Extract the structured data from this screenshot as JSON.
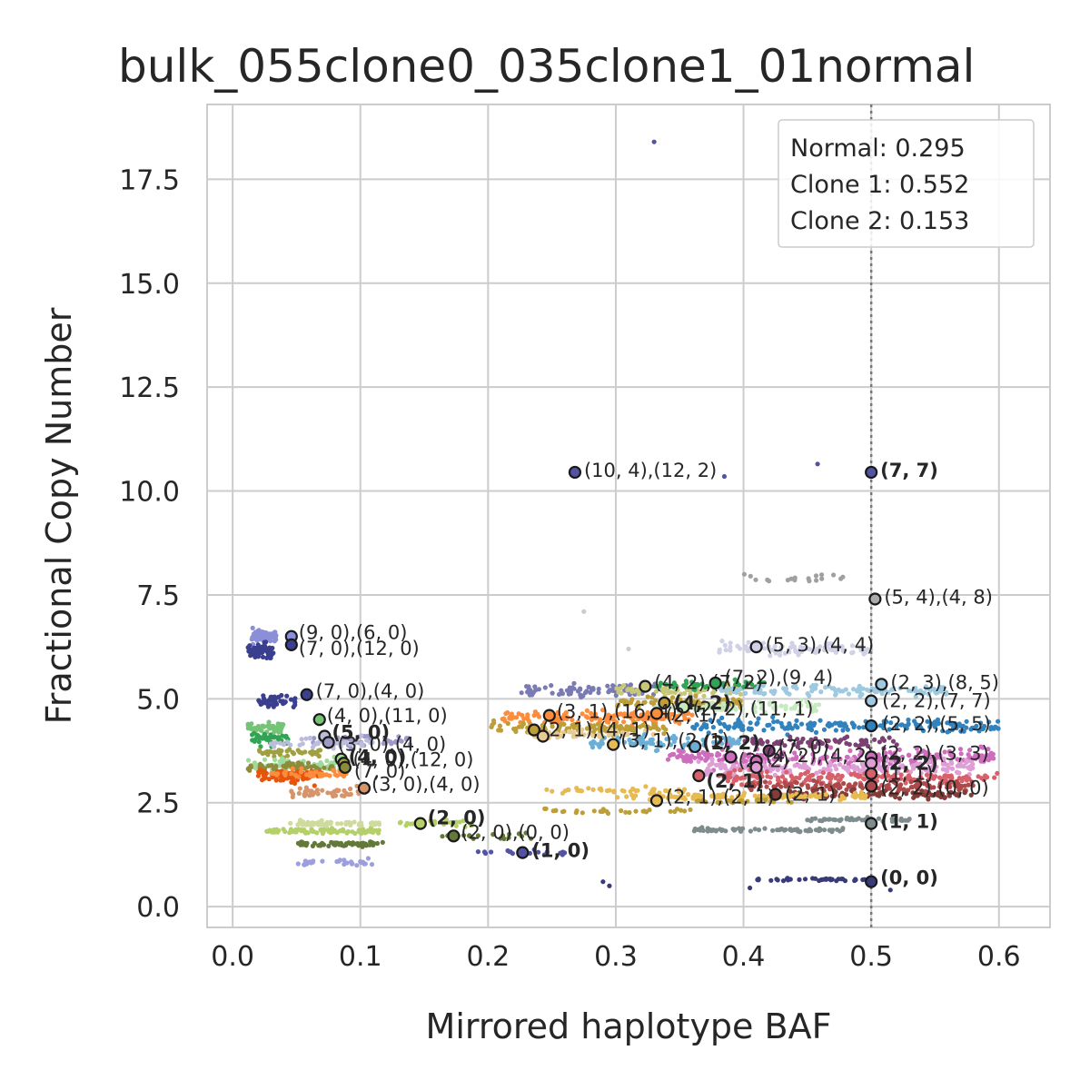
{
  "chart_data": {
    "type": "scatter",
    "title": "bulk_055clone0_035clone1_01normal",
    "xlabel": "Mirrored haplotype BAF",
    "ylabel": "Fractional Copy Number",
    "xlim": [
      -0.02,
      0.64
    ],
    "ylim": [
      -0.5,
      19.3
    ],
    "x_ticks": [
      0.0,
      0.1,
      0.2,
      0.3,
      0.4,
      0.5,
      0.6
    ],
    "x_tick_labels": [
      "0.0",
      "0.1",
      "0.2",
      "0.3",
      "0.4",
      "0.5",
      "0.6"
    ],
    "y_ticks": [
      0.0,
      2.5,
      5.0,
      7.5,
      10.0,
      12.5,
      15.0,
      17.5
    ],
    "y_tick_labels": [
      "0.0",
      "2.5",
      "5.0",
      "7.5",
      "10.0",
      "12.5",
      "15.0",
      "17.5"
    ],
    "grid": true,
    "vline": {
      "x": 0.5,
      "style": "dotted",
      "color": "#777777"
    },
    "legend": {
      "placement": "top-right",
      "lines": [
        "Normal: 0.295",
        "Clone 1: 0.552",
        "Clone 2: 0.153"
      ]
    },
    "clusters": [
      {
        "x": [
          0.015,
          0.035
        ],
        "y": 6.5,
        "sd": 0.12,
        "n": 60,
        "color": "#8a8fd8"
      },
      {
        "x": [
          0.012,
          0.032
        ],
        "y": 6.15,
        "sd": 0.15,
        "n": 70,
        "color": "#3a3f8f"
      },
      {
        "x": [
          0.02,
          0.05
        ],
        "y": 4.95,
        "sd": 0.12,
        "n": 40,
        "color": "#3a3f8f"
      },
      {
        "x": [
          0.012,
          0.04
        ],
        "y": 4.3,
        "sd": 0.12,
        "n": 50,
        "color": "#74c476"
      },
      {
        "x": [
          0.015,
          0.045
        ],
        "y": 4.05,
        "sd": 0.12,
        "n": 40,
        "color": "#31a354"
      },
      {
        "x": [
          0.06,
          0.14
        ],
        "y": 4.0,
        "sd": 0.12,
        "n": 50,
        "color": "#9e9ac8"
      },
      {
        "x": [
          0.03,
          0.11
        ],
        "y": 3.95,
        "sd": 0.1,
        "n": 40,
        "color": "#bcbddc"
      },
      {
        "x": [
          0.02,
          0.07
        ],
        "y": 3.7,
        "sd": 0.08,
        "n": 40,
        "color": "#a0a040"
      },
      {
        "x": [
          0.012,
          0.09
        ],
        "y": 3.4,
        "sd": 0.12,
        "n": 80,
        "color": "#a1d99b"
      },
      {
        "x": [
          0.012,
          0.08
        ],
        "y": 3.35,
        "sd": 0.08,
        "n": 50,
        "color": "#8c8c3a"
      },
      {
        "x": [
          0.02,
          0.07
        ],
        "y": 3.15,
        "sd": 0.12,
        "n": 90,
        "color": "#e6550d"
      },
      {
        "x": [
          0.03,
          0.09
        ],
        "y": 3.2,
        "sd": 0.08,
        "n": 40,
        "color": "#fd8d3c"
      },
      {
        "x": [
          0.045,
          0.1
        ],
        "y": 2.75,
        "sd": 0.1,
        "n": 40,
        "color": "#d6946b"
      },
      {
        "x": [
          0.025,
          0.115
        ],
        "y": 1.82,
        "sd": 0.05,
        "n": 90,
        "color": "#b5cf6b"
      },
      {
        "x": [
          0.045,
          0.115
        ],
        "y": 2.0,
        "sd": 0.05,
        "n": 60,
        "color": "#cedb9c"
      },
      {
        "x": [
          0.05,
          0.12
        ],
        "y": 1.5,
        "sd": 0.05,
        "n": 60,
        "color": "#637939"
      },
      {
        "x": [
          0.05,
          0.11
        ],
        "y": 1.05,
        "sd": 0.06,
        "n": 30,
        "color": "#9c9ede"
      },
      {
        "x": [
          0.13,
          0.19
        ],
        "y": 2.0,
        "sd": 0.06,
        "n": 30,
        "color": "#b5cf6b"
      },
      {
        "x": [
          0.16,
          0.24
        ],
        "y": 1.7,
        "sd": 0.06,
        "n": 20,
        "color": "#637939"
      },
      {
        "x": [
          0.19,
          0.26
        ],
        "y": 1.3,
        "sd": 0.05,
        "n": 20,
        "color": "#5254a3"
      },
      {
        "x": [
          0.21,
          0.36
        ],
        "y": 4.55,
        "sd": 0.12,
        "n": 140,
        "color": "#fd8d3c"
      },
      {
        "x": [
          0.2,
          0.34
        ],
        "y": 4.3,
        "sd": 0.1,
        "n": 110,
        "color": "#bd9e39"
      },
      {
        "x": [
          0.23,
          0.33
        ],
        "y": 4.15,
        "sd": 0.08,
        "n": 60,
        "color": "#e7cb94"
      },
      {
        "x": [
          0.22,
          0.34
        ],
        "y": 5.2,
        "sd": 0.1,
        "n": 80,
        "color": "#7b7bb3"
      },
      {
        "x": [
          0.3,
          0.4
        ],
        "y": 5.2,
        "sd": 0.1,
        "n": 70,
        "color": "#c7c77a"
      },
      {
        "x": [
          0.3,
          0.4
        ],
        "y": 4.9,
        "sd": 0.12,
        "n": 80,
        "color": "#bd9e39"
      },
      {
        "x": [
          0.33,
          0.42
        ],
        "y": 5.35,
        "sd": 0.1,
        "n": 50,
        "color": "#31a354"
      },
      {
        "x": [
          0.33,
          0.46
        ],
        "y": 4.8,
        "sd": 0.1,
        "n": 80,
        "color": "#c7e9c0"
      },
      {
        "x": [
          0.38,
          0.5
        ],
        "y": 6.2,
        "sd": 0.12,
        "n": 90,
        "color": "#d0d0e6"
      },
      {
        "x": [
          0.4,
          0.48
        ],
        "y": 7.9,
        "sd": 0.1,
        "n": 18,
        "color": "#a0a0a0"
      },
      {
        "x": [
          0.38,
          0.56
        ],
        "y": 5.2,
        "sd": 0.12,
        "n": 110,
        "color": "#9ecae1"
      },
      {
        "x": [
          0.28,
          0.4
        ],
        "y": 3.95,
        "sd": 0.12,
        "n": 90,
        "color": "#6baed6"
      },
      {
        "x": [
          0.36,
          0.6
        ],
        "y": 4.35,
        "sd": 0.12,
        "n": 180,
        "color": "#3182bd"
      },
      {
        "x": [
          0.4,
          0.52
        ],
        "y": 3.95,
        "sd": 0.1,
        "n": 70,
        "color": "#7b4173"
      },
      {
        "x": [
          0.34,
          0.6
        ],
        "y": 3.6,
        "sd": 0.15,
        "n": 220,
        "color": "#ce6dbd"
      },
      {
        "x": [
          0.36,
          0.58
        ],
        "y": 3.35,
        "sd": 0.15,
        "n": 200,
        "color": "#de9ed6"
      },
      {
        "x": [
          0.38,
          0.6
        ],
        "y": 3.1,
        "sd": 0.12,
        "n": 160,
        "color": "#d6616b"
      },
      {
        "x": [
          0.4,
          0.58
        ],
        "y": 2.9,
        "sd": 0.1,
        "n": 120,
        "color": "#ad494a"
      },
      {
        "x": [
          0.42,
          0.58
        ],
        "y": 2.7,
        "sd": 0.08,
        "n": 100,
        "color": "#843c39"
      },
      {
        "x": [
          0.3,
          0.5
        ],
        "y": 2.65,
        "sd": 0.06,
        "n": 120,
        "color": "#e7ba52"
      },
      {
        "x": [
          0.24,
          0.36
        ],
        "y": 2.8,
        "sd": 0.05,
        "n": 40,
        "color": "#e7ba52"
      },
      {
        "x": [
          0.24,
          0.36
        ],
        "y": 2.3,
        "sd": 0.05,
        "n": 30,
        "color": "#bd9e39"
      },
      {
        "x": [
          0.36,
          0.44
        ],
        "y": 2.55,
        "sd": 0.05,
        "n": 30,
        "color": "#bd9e39"
      },
      {
        "x": [
          0.36,
          0.48
        ],
        "y": 1.85,
        "sd": 0.04,
        "n": 70,
        "color": "#7f8c8d"
      },
      {
        "x": [
          0.45,
          0.53
        ],
        "y": 2.1,
        "sd": 0.04,
        "n": 40,
        "color": "#7f8c8d"
      },
      {
        "x": [
          0.41,
          0.5
        ],
        "y": 0.65,
        "sd": 0.03,
        "n": 40,
        "color": "#393b79"
      }
    ],
    "outliers": [
      {
        "x": 0.33,
        "y": 18.4,
        "color": "#5254a3"
      },
      {
        "x": 0.458,
        "y": 10.65,
        "color": "#5254a3"
      },
      {
        "x": 0.385,
        "y": 10.35,
        "color": "#5254a3"
      },
      {
        "x": 0.275,
        "y": 7.1,
        "color": "#cccccc"
      },
      {
        "x": 0.31,
        "y": 6.2,
        "color": "#cccccc"
      },
      {
        "x": 0.29,
        "y": 0.6,
        "color": "#393b79"
      },
      {
        "x": 0.295,
        "y": 0.5,
        "color": "#393b79"
      },
      {
        "x": 0.405,
        "y": 0.45,
        "color": "#393b79"
      },
      {
        "x": 0.515,
        "y": 0.4,
        "color": "#393b79"
      }
    ],
    "centers": [
      {
        "x": 0.268,
        "y": 10.45,
        "fill": "#5254a3",
        "label": "(10, 4),(12, 2)",
        "bold": false,
        "dx": 4,
        "dy": -2
      },
      {
        "x": 0.5,
        "y": 10.45,
        "fill": "#5254a3",
        "label": "(7, 7)",
        "bold": true,
        "dx": 4,
        "dy": -2
      },
      {
        "x": 0.503,
        "y": 7.4,
        "fill": "#aaaaaa",
        "label": "(5, 4),(4, 8)",
        "bold": false,
        "dx": 4,
        "dy": -2
      },
      {
        "x": 0.046,
        "y": 6.5,
        "fill": "#8a8fd8",
        "label": "(9, 0),(6, 0)",
        "bold": false,
        "dx": 2,
        "dy": -4
      },
      {
        "x": 0.046,
        "y": 6.3,
        "fill": "#3a3f8f",
        "label": "(7, 0),(12, 0)",
        "bold": false,
        "dx": 2,
        "dy": 4
      },
      {
        "x": 0.41,
        "y": 6.25,
        "fill": "#d0d0e6",
        "label": "(5, 3),(4, 4)",
        "bold": false,
        "dx": 4,
        "dy": -2
      },
      {
        "x": 0.058,
        "y": 5.1,
        "fill": "#3a3f8f",
        "label": "(7, 0),(4, 0)",
        "bold": false,
        "dx": 4,
        "dy": -4
      },
      {
        "x": 0.323,
        "y": 5.3,
        "fill": "#c7c77a",
        "label": "(4, 2),(7, 2)",
        "bold": false,
        "dx": 4,
        "dy": -4
      },
      {
        "x": 0.378,
        "y": 5.38,
        "fill": "#31a354",
        "label": "(7, 2),(9, 4)",
        "bold": false,
        "dx": 4,
        "dy": -6
      },
      {
        "x": 0.508,
        "y": 5.35,
        "fill": "#9ecae1",
        "label": "(2, 3),(8, 5)",
        "bold": false,
        "dx": 4,
        "dy": -2
      },
      {
        "x": 0.5,
        "y": 4.95,
        "fill": "#9ecae1",
        "label": "(2, 2),(7, 7)",
        "bold": false,
        "dx": 6,
        "dy": 0
      },
      {
        "x": 0.338,
        "y": 4.9,
        "fill": "#bd9e39",
        "label": "(4, 2)",
        "bold": true,
        "dx": 4,
        "dy": 0
      },
      {
        "x": 0.353,
        "y": 4.8,
        "fill": "#c7e9c0",
        "label": "(2, 2),(11, 1)",
        "bold": false,
        "dx": 4,
        "dy": 2
      },
      {
        "x": 0.068,
        "y": 4.5,
        "fill": "#74c476",
        "label": "(4, 0),(11, 0)",
        "bold": false,
        "dx": 2,
        "dy": -4
      },
      {
        "x": 0.248,
        "y": 4.6,
        "fill": "#fd8d3c",
        "label": "(3, 1),(16, 4)",
        "bold": false,
        "dx": 2,
        "dy": -4
      },
      {
        "x": 0.332,
        "y": 4.65,
        "fill": "#fd8d3c",
        "label": "(2, 1)",
        "bold": false,
        "dx": 4,
        "dy": 2
      },
      {
        "x": 0.5,
        "y": 4.35,
        "fill": "#3182bd",
        "label": "(2, 2),(5, 5)",
        "bold": false,
        "dx": 6,
        "dy": -2
      },
      {
        "x": 0.236,
        "y": 4.25,
        "fill": "#bd9e39",
        "label": "(2, 1),(4, 1)",
        "bold": false,
        "dx": 2,
        "dy": 0
      },
      {
        "x": 0.243,
        "y": 4.1,
        "fill": "#e7cb94",
        "label": "",
        "bold": false,
        "dx": 0,
        "dy": 0
      },
      {
        "x": 0.072,
        "y": 4.1,
        "fill": "#bcbddc",
        "label": "(5, 0)",
        "bold": true,
        "dx": 2,
        "dy": -4
      },
      {
        "x": 0.075,
        "y": 3.95,
        "fill": "#9e9ac8",
        "label": "(3, 0),(4, 0)",
        "bold": false,
        "dx": 4,
        "dy": 2
      },
      {
        "x": 0.298,
        "y": 3.9,
        "fill": "#e7ba52",
        "label": "(3, 1),(2, 1)",
        "bold": false,
        "dx": 2,
        "dy": -4
      },
      {
        "x": 0.362,
        "y": 3.85,
        "fill": "#6baed6",
        "label": "(2, 2)",
        "bold": true,
        "dx": 2,
        "dy": -4
      },
      {
        "x": 0.42,
        "y": 3.75,
        "fill": "#7b4173",
        "label": "(7, 0)",
        "bold": false,
        "dx": 4,
        "dy": -4
      },
      {
        "x": 0.085,
        "y": 3.55,
        "fill": "#a1d99b",
        "label": "(4, 0)",
        "bold": true,
        "dx": 2,
        "dy": -2
      },
      {
        "x": 0.087,
        "y": 3.45,
        "fill": "#a0a040",
        "label": "(4, 0),(12, 0)",
        "bold": false,
        "dx": 4,
        "dy": -4
      },
      {
        "x": 0.088,
        "y": 3.35,
        "fill": "#8c8c3a",
        "label": "(7, 0)",
        "bold": false,
        "dx": 4,
        "dy": 4
      },
      {
        "x": 0.39,
        "y": 3.6,
        "fill": "#ce6dbd",
        "label": "(2, 2)",
        "bold": false,
        "dx": 2,
        "dy": 4
      },
      {
        "x": 0.41,
        "y": 3.5,
        "fill": "#ce6dbd",
        "label": "(4, 2),(4, 2)",
        "bold": false,
        "dx": 4,
        "dy": -6
      },
      {
        "x": 0.5,
        "y": 3.6,
        "fill": "#ce6dbd",
        "label": "(2, 2),(3, 3)",
        "bold": false,
        "dx": 4,
        "dy": -4
      },
      {
        "x": 0.5,
        "y": 3.45,
        "fill": "#de9ed6",
        "label": "(2, 2)",
        "bold": true,
        "dx": 4,
        "dy": 0
      },
      {
        "x": 0.5,
        "y": 3.2,
        "fill": "#d6616b",
        "label": "(1, 1)",
        "bold": false,
        "dx": 6,
        "dy": 0
      },
      {
        "x": 0.41,
        "y": 3.35,
        "fill": "#de9ed6",
        "label": "",
        "bold": false,
        "dx": 0,
        "dy": 0
      },
      {
        "x": 0.365,
        "y": 3.15,
        "fill": "#d6616b",
        "label": "(2, 1)",
        "bold": true,
        "dx": 2,
        "dy": 6
      },
      {
        "x": 0.5,
        "y": 2.9,
        "fill": "#ad494a",
        "label": "(2, 2),(0, 0)",
        "bold": false,
        "dx": 4,
        "dy": 2
      },
      {
        "x": 0.103,
        "y": 2.85,
        "fill": "#d6946b",
        "label": "(3, 0),(4, 0)",
        "bold": false,
        "dx": 2,
        "dy": -4
      },
      {
        "x": 0.425,
        "y": 2.7,
        "fill": "#843c39",
        "label": "(2, 1)",
        "bold": false,
        "dx": 4,
        "dy": 0
      },
      {
        "x": 0.332,
        "y": 2.55,
        "fill": "#e7ba52",
        "label": "(2, 1),(2, 1)",
        "bold": false,
        "dx": 4,
        "dy": -4
      },
      {
        "x": 0.147,
        "y": 2.0,
        "fill": "#b5cf6b",
        "label": "(2, 0)",
        "bold": true,
        "dx": 2,
        "dy": -6
      },
      {
        "x": 0.5,
        "y": 2.0,
        "fill": "#7f8c8d",
        "label": "(1, 1)",
        "bold": true,
        "dx": 4,
        "dy": -2
      },
      {
        "x": 0.173,
        "y": 1.7,
        "fill": "#637939",
        "label": "(2, 0),(0, 0)",
        "bold": false,
        "dx": 2,
        "dy": -4
      },
      {
        "x": 0.227,
        "y": 1.3,
        "fill": "#5254a3",
        "label": "(1, 0)",
        "bold": true,
        "dx": 4,
        "dy": -2
      },
      {
        "x": 0.5,
        "y": 0.6,
        "fill": "#393b79",
        "label": "(0, 0)",
        "bold": true,
        "dx": 4,
        "dy": -4
      }
    ]
  }
}
